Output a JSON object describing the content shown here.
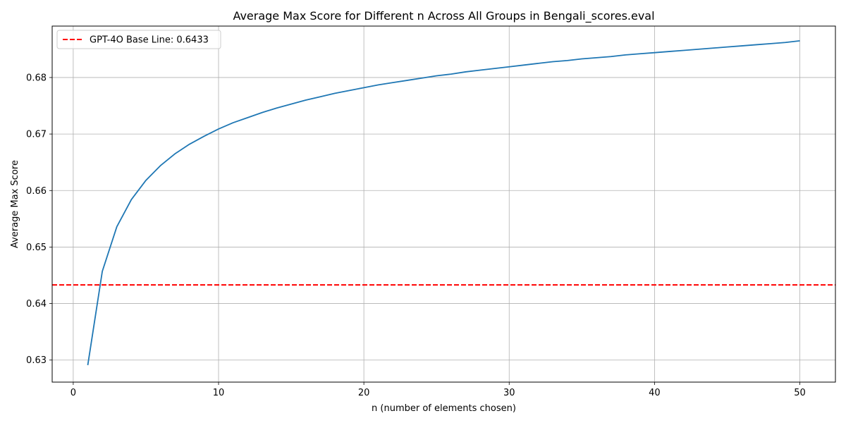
{
  "chart_data": {
    "type": "line",
    "title": "Average Max Score for Different n Across All Groups in Bengali_scores.eval",
    "xlabel": "n (number of elements chosen)",
    "ylabel": "Average Max Score",
    "xlim": [
      -1.45,
      52.45
    ],
    "ylim": [
      0.6261,
      0.6891
    ],
    "xticks": [
      0,
      10,
      20,
      30,
      40,
      50
    ],
    "xtick_labels": [
      "0",
      "10",
      "20",
      "30",
      "40",
      "50"
    ],
    "yticks": [
      0.63,
      0.64,
      0.65,
      0.66,
      0.67,
      0.68
    ],
    "ytick_labels": [
      "0.63",
      "0.64",
      "0.65",
      "0.66",
      "0.67",
      "0.68"
    ],
    "grid": true,
    "legend_position": "upper left",
    "series": [
      {
        "color": "#1f77b4",
        "x": [
          1,
          2,
          3,
          4,
          5,
          6,
          7,
          8,
          9,
          10,
          11,
          12,
          13,
          14,
          15,
          16,
          17,
          18,
          19,
          20,
          21,
          22,
          23,
          24,
          25,
          26,
          27,
          28,
          29,
          30,
          31,
          32,
          33,
          34,
          35,
          36,
          37,
          38,
          39,
          40,
          41,
          42,
          43,
          44,
          45,
          46,
          47,
          48,
          49,
          50
        ],
        "values": [
          0.6291,
          0.6457,
          0.6536,
          0.6584,
          0.6618,
          0.6644,
          0.6665,
          0.6682,
          0.6696,
          0.6709,
          0.672,
          0.6729,
          0.6738,
          0.6746,
          0.6753,
          0.676,
          0.6766,
          0.6772,
          0.6777,
          0.6782,
          0.6787,
          0.6791,
          0.6795,
          0.6799,
          0.6803,
          0.6806,
          0.681,
          0.6813,
          0.6816,
          0.6819,
          0.6822,
          0.6825,
          0.6828,
          0.683,
          0.6833,
          0.6835,
          0.6837,
          0.684,
          0.6842,
          0.6844,
          0.6846,
          0.6848,
          0.685,
          0.6852,
          0.6854,
          0.6856,
          0.6858,
          0.686,
          0.6862,
          0.6865
        ]
      }
    ],
    "reference_lines": [
      {
        "name": "GPT-4O Base Line: 0.6433",
        "y": 0.6433,
        "color": "#ff0000",
        "style": "dashed"
      }
    ]
  }
}
